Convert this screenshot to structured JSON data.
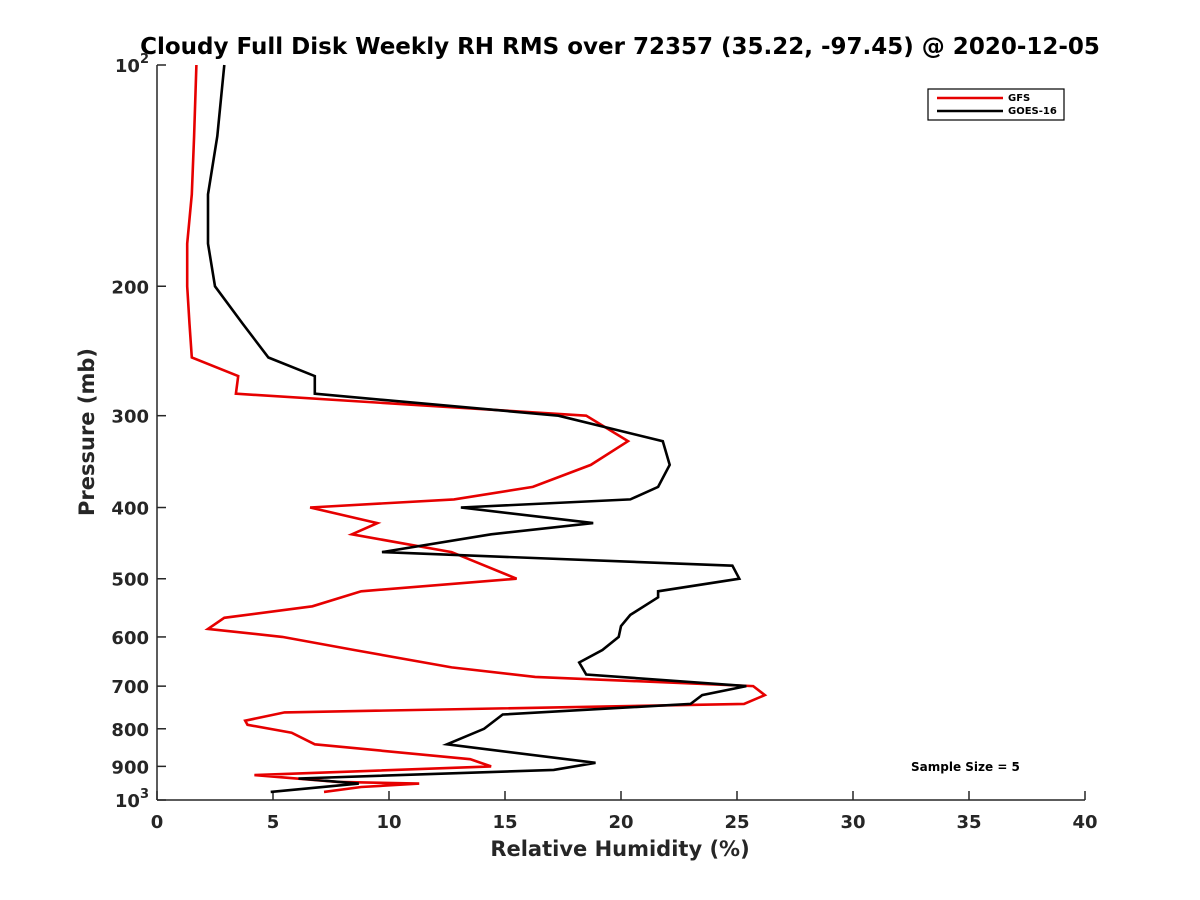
{
  "chart_data": {
    "type": "line",
    "title": "Cloudy Full Disk Weekly RH RMS over 72357 (35.22, -97.45) @ 2020-12-05",
    "xlabel": "Relative Humidity (%)",
    "ylabel": "Pressure (mb)",
    "xlim": [
      0,
      40
    ],
    "ylim": [
      100,
      1000
    ],
    "yscale": "log",
    "y_reversed": true,
    "x_ticks": [
      "0",
      "5",
      "10",
      "15",
      "20",
      "25",
      "30",
      "35",
      "40"
    ],
    "y_ticks": [
      {
        "value": 100,
        "base": "10",
        "exp": "2"
      },
      {
        "value": 200,
        "label": "200"
      },
      {
        "value": 300,
        "label": "300"
      },
      {
        "value": 400,
        "label": "400"
      },
      {
        "value": 500,
        "label": "500"
      },
      {
        "value": 600,
        "label": "600"
      },
      {
        "value": 700,
        "label": "700"
      },
      {
        "value": 800,
        "label": "800"
      },
      {
        "value": 900,
        "label": "900"
      },
      {
        "value": 1000,
        "base": "10",
        "exp": "3"
      }
    ],
    "grid": false,
    "legend_position": "top-right",
    "series": [
      {
        "name": "GFS",
        "color": "#e60000",
        "points": [
          [
            1.7,
            100
          ],
          [
            1.6,
            125
          ],
          [
            1.5,
            150
          ],
          [
            1.3,
            175
          ],
          [
            1.3,
            200
          ],
          [
            1.4,
            225
          ],
          [
            1.5,
            250
          ],
          [
            3.5,
            265
          ],
          [
            3.4,
            280
          ],
          [
            18.5,
            300
          ],
          [
            20.3,
            325
          ],
          [
            18.7,
            350
          ],
          [
            16.2,
            375
          ],
          [
            12.8,
            390
          ],
          [
            6.6,
            400
          ],
          [
            9.5,
            420
          ],
          [
            8.4,
            435
          ],
          [
            12.7,
            460
          ],
          [
            15.5,
            500
          ],
          [
            8.8,
            520
          ],
          [
            6.7,
            545
          ],
          [
            2.9,
            565
          ],
          [
            2.2,
            585
          ],
          [
            5.4,
            600
          ],
          [
            8.5,
            625
          ],
          [
            12.7,
            660
          ],
          [
            16.3,
            680
          ],
          [
            25.7,
            700
          ],
          [
            26.2,
            720
          ],
          [
            25.3,
            740
          ],
          [
            5.5,
            760
          ],
          [
            3.8,
            780
          ],
          [
            3.9,
            790
          ],
          [
            5.8,
            810
          ],
          [
            6.8,
            840
          ],
          [
            13.5,
            880
          ],
          [
            14.4,
            900
          ],
          [
            4.2,
            925
          ],
          [
            7.8,
            945
          ],
          [
            11.3,
            950
          ],
          [
            8.8,
            960
          ],
          [
            7.2,
            975
          ]
        ]
      },
      {
        "name": "GOES-16",
        "color": "#000000",
        "points": [
          [
            2.9,
            100
          ],
          [
            2.6,
            125
          ],
          [
            2.2,
            150
          ],
          [
            2.2,
            175
          ],
          [
            2.5,
            200
          ],
          [
            3.7,
            225
          ],
          [
            4.8,
            250
          ],
          [
            6.8,
            265
          ],
          [
            6.8,
            280
          ],
          [
            17.3,
            300
          ],
          [
            21.8,
            325
          ],
          [
            22.1,
            350
          ],
          [
            21.6,
            375
          ],
          [
            20.4,
            390
          ],
          [
            13.1,
            400
          ],
          [
            18.8,
            420
          ],
          [
            14.4,
            435
          ],
          [
            9.7,
            460
          ],
          [
            24.8,
            480
          ],
          [
            25.1,
            500
          ],
          [
            21.6,
            520
          ],
          [
            21.6,
            530
          ],
          [
            20.4,
            560
          ],
          [
            20.0,
            580
          ],
          [
            19.9,
            600
          ],
          [
            19.2,
            625
          ],
          [
            18.2,
            650
          ],
          [
            18.5,
            675
          ],
          [
            25.4,
            700
          ],
          [
            23.5,
            720
          ],
          [
            23.0,
            740
          ],
          [
            14.9,
            765
          ],
          [
            14.1,
            800
          ],
          [
            12.5,
            840
          ],
          [
            18.9,
            890
          ],
          [
            17.1,
            910
          ],
          [
            6.1,
            935
          ],
          [
            8.7,
            950
          ],
          [
            4.9,
            975
          ]
        ]
      }
    ],
    "annotations": [
      "Sample Size = 5"
    ]
  }
}
